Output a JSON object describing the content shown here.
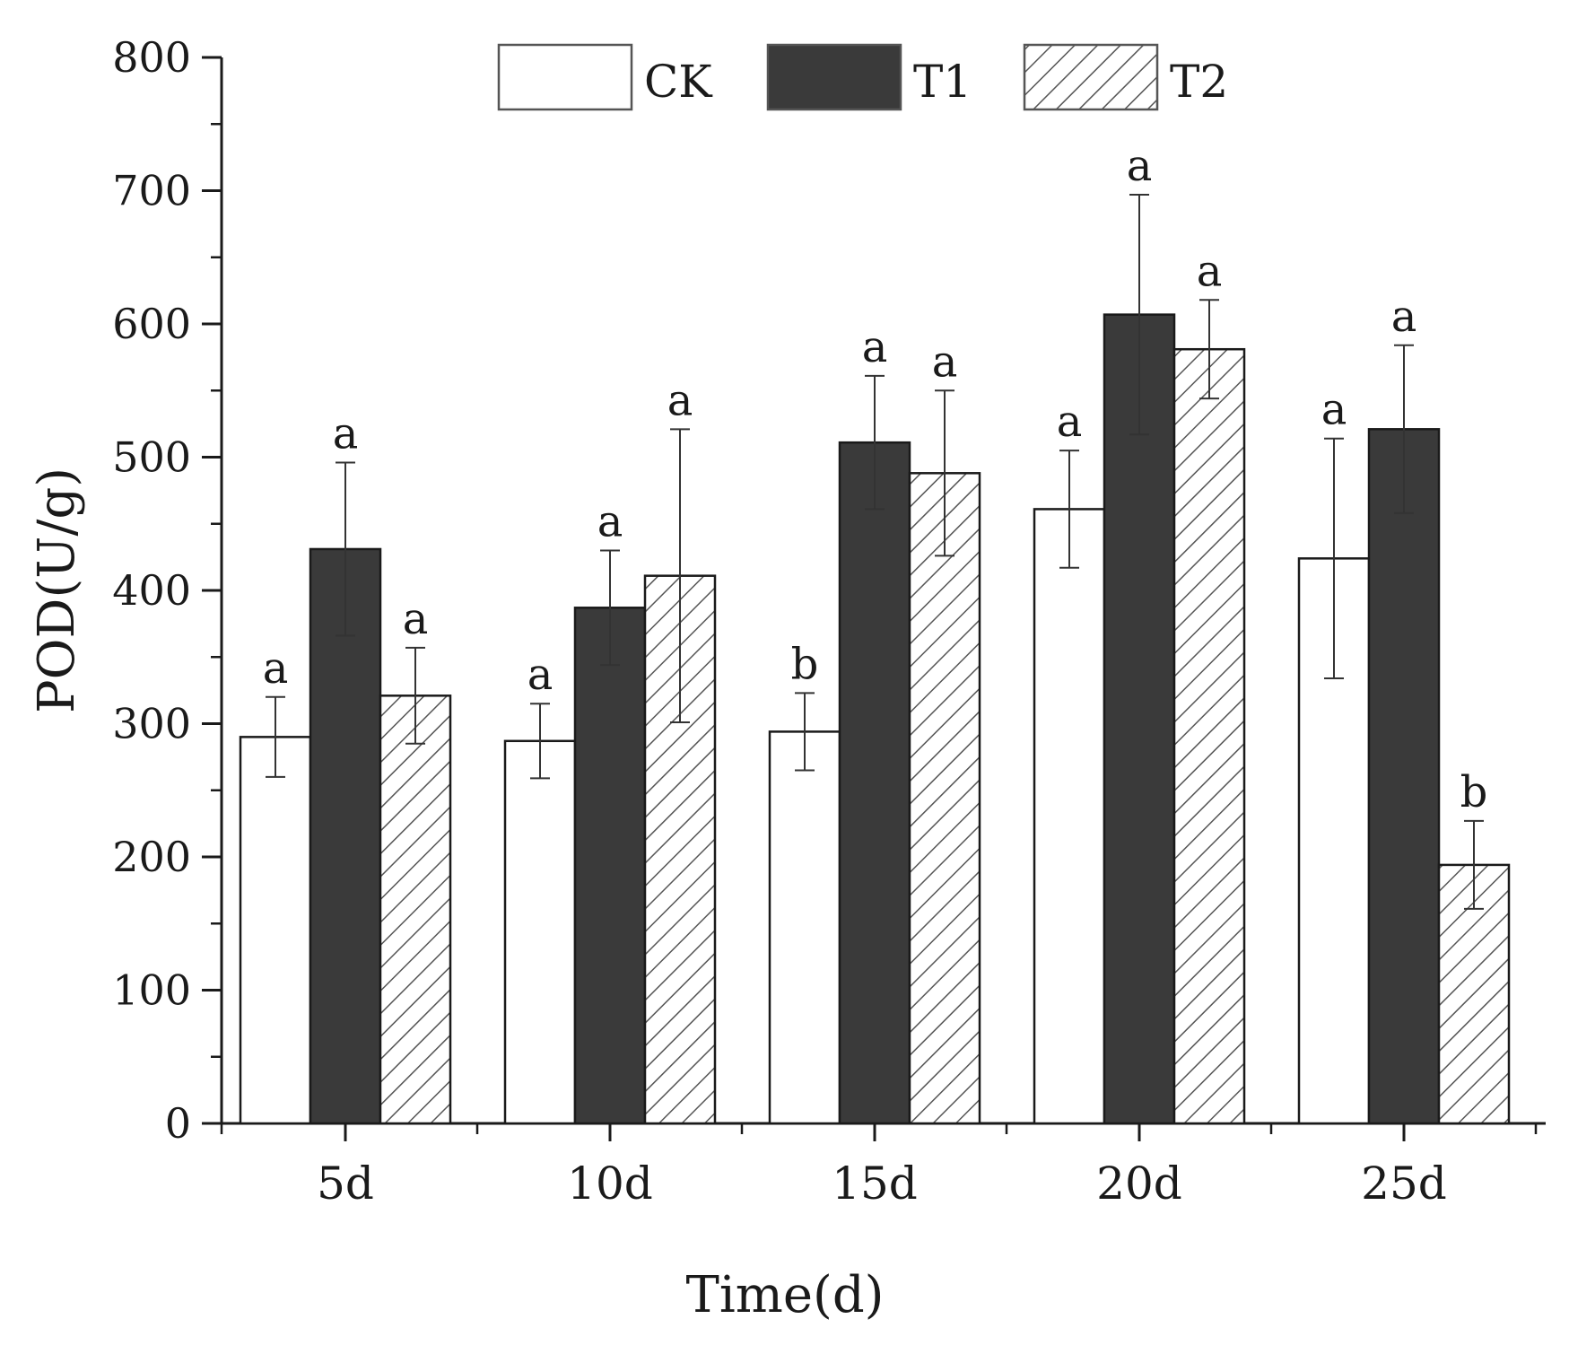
{
  "chart_data": {
    "type": "bar",
    "title": "",
    "xlabel": "Time(d)",
    "ylabel": "POD(U/g)",
    "ylim": [
      0,
      800
    ],
    "yticks": [
      0,
      100,
      200,
      300,
      400,
      500,
      600,
      700,
      800
    ],
    "categories": [
      "5d",
      "10d",
      "15d",
      "20d",
      "25d"
    ],
    "legend_position": "top-center",
    "series": [
      {
        "name": "CK",
        "pattern": "open",
        "values": [
          290,
          287,
          294,
          461,
          424
        ],
        "errors": [
          30,
          28,
          29,
          44,
          90
        ],
        "significance": [
          "a",
          "a",
          "b",
          "a",
          "a"
        ]
      },
      {
        "name": "T1",
        "pattern": "solid-dark",
        "values": [
          431,
          387,
          511,
          607,
          521
        ],
        "errors": [
          65,
          43,
          50,
          90,
          63
        ],
        "significance": [
          "a",
          "a",
          "a",
          "a",
          "a"
        ]
      },
      {
        "name": "T2",
        "pattern": "diagonal-hatch",
        "values": [
          321,
          411,
          488,
          581,
          194
        ],
        "errors": [
          36,
          110,
          62,
          37,
          33
        ],
        "significance": [
          "a",
          "a",
          "a",
          "a",
          "b"
        ]
      }
    ]
  },
  "colors": {
    "axis": "#1a1a1a",
    "ck_fill": "#ffffff",
    "t1_fill": "#3a3a3a",
    "t2_fill": "#ffffff",
    "hatch": "#555555",
    "error_bar": "#333333"
  }
}
